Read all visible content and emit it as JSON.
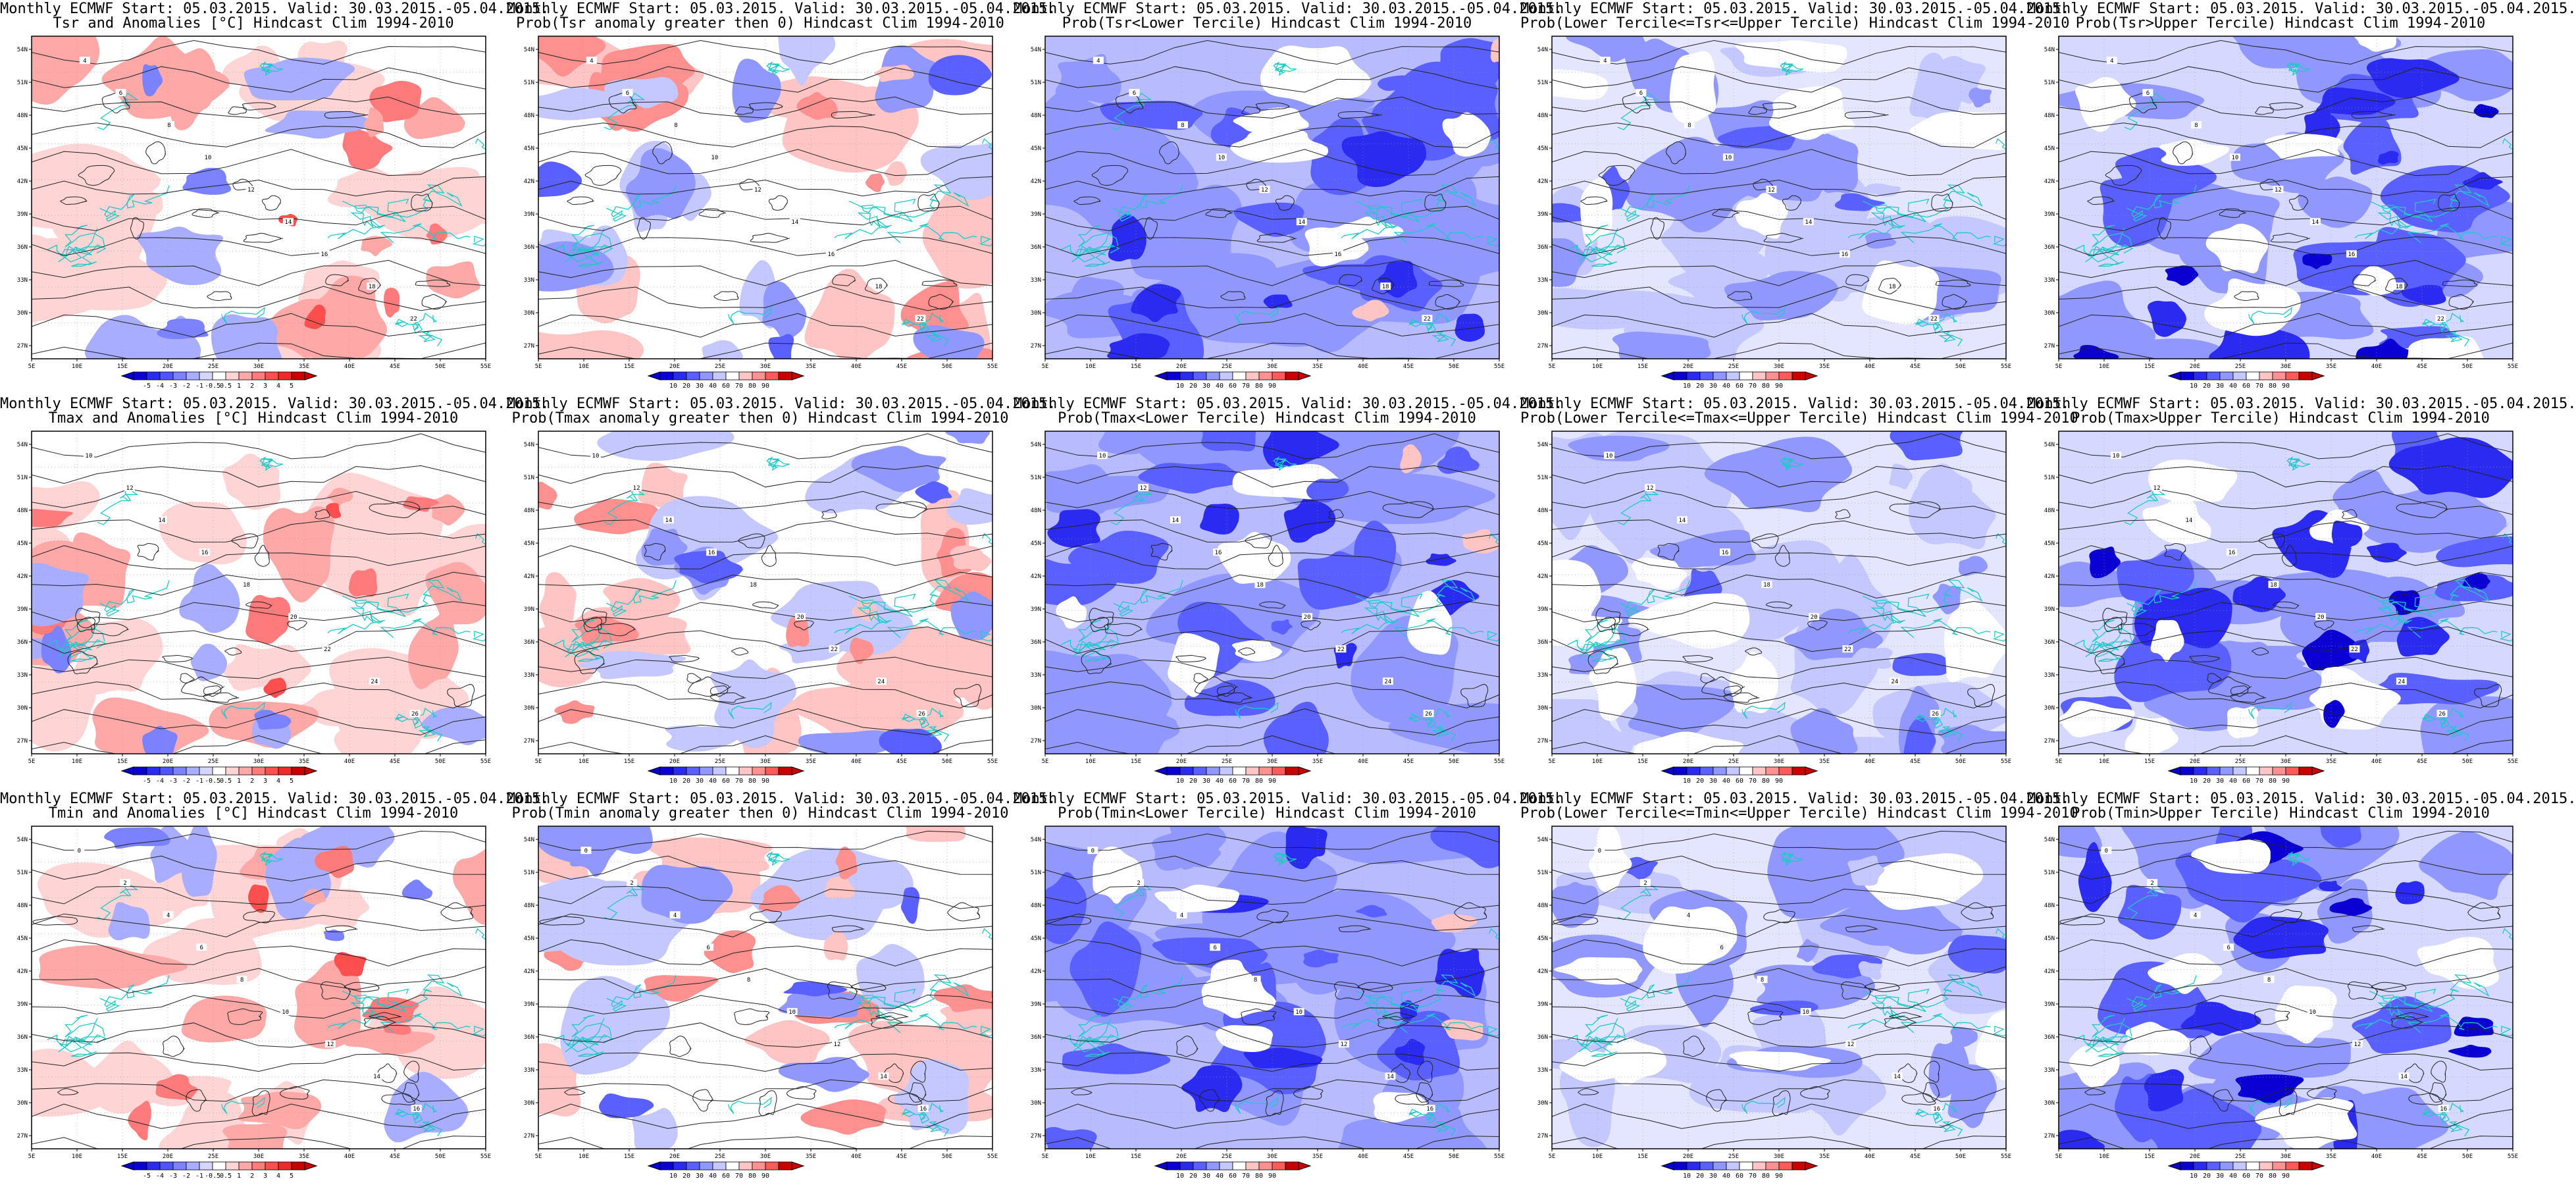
{
  "panels": [
    {
      "row": 0,
      "col": 0,
      "line1": "Monthly ECMWF Start: 05.03.2015. Valid: 30.03.2015.-05.04.2015.",
      "line2": "Tsr and Anomalies [°C] Hindcast Clim 1994-2010",
      "kind": "anom",
      "scale": "anom",
      "contour_labels": [
        "4",
        "6",
        "8",
        "10",
        "12",
        "14",
        "16",
        "18",
        "22"
      ]
    },
    {
      "row": 0,
      "col": 1,
      "line1": "Monthly ECMWF Start: 05.03.2015. Valid: 30.03.2015.-05.04.2015.",
      "line2": "Prob(Tsr anomaly greater then 0) Hindcast Clim 1994-2010",
      "kind": "probpos",
      "scale": "prob",
      "contour_labels": [
        "4",
        "6",
        "8",
        "10",
        "12",
        "14",
        "16",
        "18",
        "22"
      ]
    },
    {
      "row": 0,
      "col": 2,
      "line1": "Monthly ECMWF Start: 05.03.2015. Valid: 30.03.2015.-05.04.2015.",
      "line2": "Prob(Tsr<Lower Tercile) Hindcast Clim 1994-2010",
      "kind": "lower",
      "scale": "prob",
      "contour_labels": [
        "4",
        "6",
        "8",
        "10",
        "12",
        "14",
        "16",
        "18",
        "22"
      ]
    },
    {
      "row": 0,
      "col": 3,
      "line1": "Monthly ECMWF Start: 05.03.2015. Valid: 30.03.2015.-05.04.2015.",
      "line2": "Prob(Lower Tercile<=Tsr<=Upper Tercile) Hindcast Clim 1994-2010",
      "kind": "middle",
      "scale": "prob",
      "contour_labels": [
        "4",
        "6",
        "8",
        "10",
        "12",
        "14",
        "16",
        "18",
        "22"
      ]
    },
    {
      "row": 0,
      "col": 4,
      "line1": "Monthly ECMWF Start: 05.03.2015. Valid: 30.03.2015.-05.04.2015.",
      "line2": "Prob(Tsr>Upper Tercile) Hindcast Clim 1994-2010",
      "kind": "upper",
      "scale": "prob",
      "contour_labels": [
        "4",
        "6",
        "8",
        "10",
        "12",
        "14",
        "16",
        "18",
        "22"
      ]
    },
    {
      "row": 1,
      "col": 0,
      "line1": "Monthly ECMWF Start: 05.03.2015. Valid: 30.03.2015.-05.04.2015.",
      "line2": "Tmax and Anomalies [°C] Hindcast Clim 1994-2010",
      "kind": "anom",
      "scale": "anom",
      "contour_labels": [
        "10",
        "12",
        "14",
        "16",
        "18",
        "20",
        "22",
        "24",
        "26"
      ]
    },
    {
      "row": 1,
      "col": 1,
      "line1": "Monthly ECMWF Start: 05.03.2015. Valid: 30.03.2015.-05.04.2015.",
      "line2": "Prob(Tmax anomaly greater then 0) Hindcast Clim 1994-2010",
      "kind": "probpos",
      "scale": "prob",
      "contour_labels": [
        "10",
        "12",
        "14",
        "16",
        "18",
        "20",
        "22",
        "24",
        "26"
      ]
    },
    {
      "row": 1,
      "col": 2,
      "line1": "Monthly ECMWF Start: 05.03.2015. Valid: 30.03.2015.-05.04.2015.",
      "line2": "Prob(Tmax<Lower Tercile) Hindcast Clim 1994-2010",
      "kind": "lower",
      "scale": "prob",
      "contour_labels": [
        "10",
        "12",
        "14",
        "16",
        "18",
        "20",
        "22",
        "24",
        "26"
      ]
    },
    {
      "row": 1,
      "col": 3,
      "line1": "Monthly ECMWF Start: 05.03.2015. Valid: 30.03.2015.-05.04.2015.",
      "line2": "Prob(Lower Tercile<=Tmax<=Upper Tercile) Hindcast Clim 1994-2010",
      "kind": "middle",
      "scale": "prob",
      "contour_labels": [
        "10",
        "12",
        "14",
        "16",
        "18",
        "20",
        "22",
        "24",
        "26"
      ]
    },
    {
      "row": 1,
      "col": 4,
      "line1": "Monthly ECMWF Start: 05.03.2015. Valid: 30.03.2015.-05.04.2015.",
      "line2": "Prob(Tmax>Upper Tercile) Hindcast Clim 1994-2010",
      "kind": "upper",
      "scale": "prob",
      "contour_labels": [
        "10",
        "12",
        "14",
        "16",
        "18",
        "20",
        "22",
        "24",
        "26"
      ]
    },
    {
      "row": 2,
      "col": 0,
      "line1": "Monthly ECMWF Start: 05.03.2015. Valid: 30.03.2015.-05.04.2015.",
      "line2": "Tmin and Anomalies [°C] Hindcast Clim 1994-2010",
      "kind": "anom",
      "scale": "anom",
      "contour_labels": [
        "0",
        "2",
        "4",
        "6",
        "8",
        "10",
        "12",
        "14",
        "16"
      ]
    },
    {
      "row": 2,
      "col": 1,
      "line1": "Monthly ECMWF Start: 05.03.2015. Valid: 30.03.2015.-05.04.2015.",
      "line2": "Prob(Tmin anomaly greater then 0) Hindcast Clim 1994-2010",
      "kind": "probpos",
      "scale": "prob",
      "contour_labels": [
        "0",
        "2",
        "4",
        "6",
        "8",
        "10",
        "12",
        "14",
        "16"
      ]
    },
    {
      "row": 2,
      "col": 2,
      "line1": "Monthly ECMWF Start: 05.03.2015. Valid: 30.03.2015.-05.04.2015.",
      "line2": "Prob(Tmin<Lower Tercile) Hindcast Clim 1994-2010",
      "kind": "lower",
      "scale": "prob",
      "contour_labels": [
        "0",
        "2",
        "4",
        "6",
        "8",
        "10",
        "12",
        "14",
        "16"
      ]
    },
    {
      "row": 2,
      "col": 3,
      "line1": "Monthly ECMWF Start: 05.03.2015. Valid: 30.03.2015.-05.04.2015.",
      "line2": "Prob(Lower Tercile<=Tmin<=Upper Tercile) Hindcast Clim 1994-2010",
      "kind": "middle",
      "scale": "prob",
      "contour_labels": [
        "0",
        "2",
        "4",
        "6",
        "8",
        "10",
        "12",
        "14",
        "16"
      ]
    },
    {
      "row": 2,
      "col": 4,
      "line1": "Monthly ECMWF Start: 05.03.2015. Valid: 30.03.2015.-05.04.2015.",
      "line2": "Prob(Tmin>Upper Tercile) Hindcast Clim 1994-2010",
      "kind": "upper",
      "scale": "prob",
      "contour_labels": [
        "0",
        "2",
        "4",
        "6",
        "8",
        "10",
        "12",
        "14",
        "16"
      ]
    }
  ],
  "axes": {
    "lat_labels": [
      "54N",
      "51N",
      "48N",
      "45N",
      "42N",
      "39N",
      "36N",
      "33N",
      "30N",
      "27N"
    ],
    "lon_labels": [
      "5E",
      "10E",
      "15E",
      "20E",
      "25E",
      "30E",
      "35E",
      "40E",
      "45E",
      "50E",
      "55E"
    ]
  },
  "scales": {
    "anom": {
      "labels": [
        "-5",
        "-4",
        "-3",
        "-2",
        "-1",
        "-0.5",
        "0.5",
        "1",
        "2",
        "3",
        "4",
        "5"
      ],
      "colors": [
        "#0a00d2",
        "#2a2af0",
        "#4e55ff",
        "#7a82ff",
        "#a8adff",
        "#d4d6ff",
        "#ffffff",
        "#ffd4d4",
        "#ffa8a8",
        "#ff7a7a",
        "#ff4e4e",
        "#f02a2a",
        "#c80000"
      ]
    },
    "prob": {
      "labels": [
        "10",
        "20",
        "30",
        "40",
        "60",
        "70",
        "80",
        "90"
      ],
      "colors": [
        "#0a00d2",
        "#2a2af0",
        "#5a60ff",
        "#9098ff",
        "#c4c8ff",
        "#ffffff",
        "#ffc4c4",
        "#ff9090",
        "#ff5a5a",
        "#c80000"
      ]
    }
  },
  "colors": {
    "coast": "#20c8c8",
    "contour": "#222222",
    "frame": "#000000"
  }
}
